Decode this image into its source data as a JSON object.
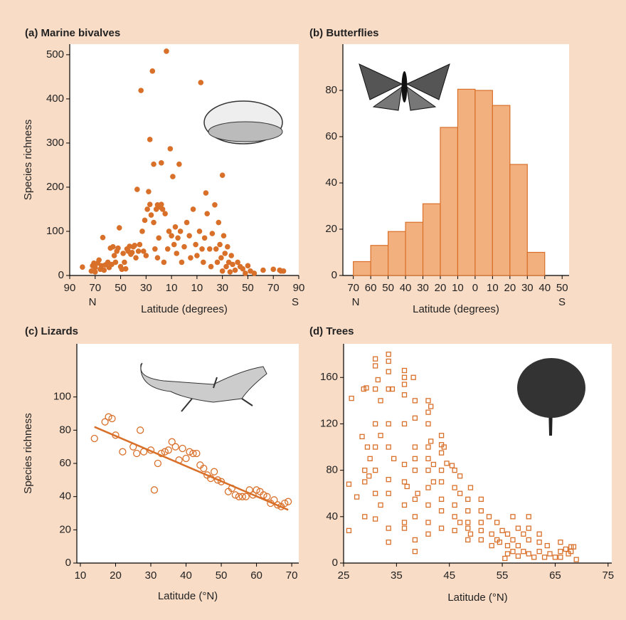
{
  "chart_data": [
    {
      "type": "scatter",
      "title": "(a) Marine bivalves",
      "xlabel": "Latitude (degrees)",
      "ylabel": "Species richness",
      "annotations": [
        "N",
        "S"
      ],
      "xlim": [
        90,
        -90
      ],
      "ylim": [
        0,
        524
      ],
      "xticks": [
        90,
        70,
        50,
        30,
        10,
        {
          "value": -10,
          "label": "10"
        },
        {
          "value": -30,
          "label": "30"
        },
        {
          "value": -50,
          "label": "50"
        },
        {
          "value": -70,
          "label": "70"
        },
        {
          "value": -90,
          "label": "90"
        }
      ],
      "yticks": [
        0,
        100,
        200,
        300,
        400,
        500
      ],
      "series": [
        {
          "color": "#d9702a",
          "marker": "circle",
          "filled": true,
          "x": [
            80,
            73,
            72,
            71,
            70,
            70,
            68,
            67,
            66,
            65,
            64,
            63,
            62,
            60,
            59,
            58,
            57,
            56,
            55,
            54,
            53,
            52,
            51,
            50,
            49,
            48,
            47,
            46,
            45,
            44,
            43,
            42,
            41,
            40,
            39,
            38,
            37,
            36,
            35,
            34,
            33,
            32,
            31,
            30,
            29,
            28,
            27,
            27,
            26,
            25,
            24,
            24,
            23,
            22,
            21,
            21,
            20,
            19,
            18,
            18,
            17,
            16,
            15,
            14,
            13,
            12,
            11,
            10,
            9,
            8,
            7,
            6,
            5,
            4,
            3,
            2,
            0,
            -2,
            -4,
            -5,
            -7,
            -9,
            -10,
            -12,
            -13,
            -14,
            -15,
            -16,
            -17,
            -18,
            -20,
            -21,
            -22,
            -24,
            -25,
            -26,
            -27,
            -28,
            -29,
            -30,
            -30,
            -31,
            -32,
            -33,
            -34,
            -35,
            -36,
            -37,
            -38,
            -40,
            -42,
            -44,
            -46,
            -48,
            -50,
            -52,
            -55,
            -62,
            -70,
            -75,
            -76,
            -78
          ],
          "values": [
            19,
            10,
            22,
            28,
            18,
            8,
            28,
            35,
            14,
            22,
            86,
            12,
            24,
            30,
            18,
            62,
            25,
            65,
            45,
            30,
            55,
            62,
            108,
            20,
            14,
            50,
            30,
            15,
            60,
            55,
            66,
            48,
            52,
            65,
            68,
            40,
            195,
            55,
            70,
            419,
            100,
            55,
            125,
            45,
            150,
            190,
            308,
            161,
            137,
            463,
            252,
            120,
            60,
            150,
            160,
            40,
            85,
            155,
            255,
            161,
            150,
            30,
            140,
            508,
            60,
            100,
            287,
            90,
            224,
            70,
            110,
            50,
            85,
            252,
            100,
            30,
            65,
            120,
            90,
            40,
            150,
            70,
            45,
            100,
            437,
            60,
            30,
            85,
            187,
            140,
            60,
            20,
            95,
            160,
            60,
            30,
            120,
            70,
            40,
            227,
            10,
            90,
            50,
            20,
            65,
            30,
            8,
            45,
            25,
            12,
            30,
            20,
            15,
            5,
            22,
            10,
            5,
            12,
            14,
            12,
            10,
            10
          ]
        }
      ]
    },
    {
      "type": "histogram",
      "title": "(b) Butterflies",
      "xlabel": "Latitude (degrees)",
      "annotations": [
        "N",
        "S"
      ],
      "xlim": [
        76,
        -54
      ],
      "ylim": [
        0,
        100
      ],
      "xticks": [
        70,
        60,
        50,
        40,
        30,
        20,
        10,
        0,
        {
          "value": -10,
          "label": "10"
        },
        {
          "value": -20,
          "label": "20"
        },
        {
          "value": -30,
          "label": "30"
        },
        {
          "value": -40,
          "label": "40"
        },
        {
          "value": -50,
          "label": "50"
        }
      ],
      "yticks": [
        0,
        20,
        40,
        60,
        80
      ],
      "color": "#f2b07f",
      "edgecolor": "#d9702a",
      "bins": [
        70,
        60,
        50,
        40,
        30,
        20,
        10,
        0,
        -10,
        -20,
        -30,
        -40
      ],
      "values": [
        6,
        13,
        19,
        23,
        31,
        64,
        80.5,
        80,
        73.5,
        48,
        10
      ]
    },
    {
      "type": "scatter",
      "title": "(c) Lizards",
      "xlabel": "Latitude (°N)",
      "ylabel": "Species richness",
      "xlim": [
        9,
        72
      ],
      "ylim": [
        0,
        132
      ],
      "xticks": [
        10,
        20,
        30,
        40,
        50,
        60,
        70
      ],
      "yticks": [
        0,
        20,
        40,
        60,
        80,
        100
      ],
      "series": [
        {
          "color": "#d9702a",
          "marker": "circle",
          "filled": false,
          "x": [
            14,
            17,
            18,
            19,
            20,
            22,
            25,
            26,
            27,
            28,
            30,
            31,
            32,
            33,
            34,
            35,
            36,
            37,
            38,
            39,
            40,
            41,
            42,
            43,
            44,
            45,
            46,
            47,
            48,
            49,
            50,
            52,
            53,
            54,
            55,
            56,
            57,
            58,
            59,
            60,
            61,
            62,
            63,
            64,
            65,
            66,
            67,
            68,
            69
          ],
          "values": [
            75,
            85,
            88,
            87,
            77,
            67,
            70,
            66,
            80,
            67,
            68,
            44,
            60,
            66,
            67,
            68,
            73,
            70,
            62,
            69,
            63,
            67,
            66,
            66,
            59,
            57,
            53,
            51,
            55,
            50,
            49,
            43,
            45,
            41,
            40,
            40,
            40,
            44,
            41,
            44,
            43,
            41,
            40,
            36,
            38,
            35,
            34,
            36,
            37
          ]
        },
        {
          "color": "#d9702a",
          "kind": "line",
          "x": [
            14,
            69
          ],
          "values": [
            82,
            32
          ]
        }
      ]
    },
    {
      "type": "scatter",
      "title": "(d) Trees",
      "xlabel": "Latitude (°N)",
      "xlim": [
        25,
        75.7
      ],
      "ylim": [
        0,
        189
      ],
      "xticks": [
        25,
        35,
        45,
        55,
        65,
        75
      ],
      "yticks": [
        0,
        40,
        80,
        120,
        160
      ],
      "series": [
        {
          "color": "#d9702a",
          "marker": "square",
          "filled": false,
          "x": [
            26,
            26,
            26.5,
            27.5,
            28.5,
            28.8,
            29,
            29,
            29,
            29.3,
            29.5,
            29.8,
            30,
            31,
            31,
            31,
            31,
            31,
            31,
            31,
            31,
            31.5,
            32,
            32,
            32,
            33.5,
            33.5,
            33.5,
            33.5,
            33.5,
            33.5,
            33.5,
            33.5,
            33.5,
            33.5,
            34.2,
            34.5,
            36.5,
            36.5,
            36.5,
            36.5,
            36.5,
            36.5,
            36.5,
            36.5,
            36.5,
            36.5,
            37,
            38.2,
            38.5,
            38.5,
            38.5,
            38.5,
            38.5,
            38.5,
            38.5,
            38.5,
            38.5,
            39,
            41,
            41,
            41,
            41,
            41,
            41,
            41,
            41,
            41,
            41,
            41.5,
            41.5,
            42,
            42,
            43.5,
            43.5,
            43.5,
            43.5,
            43.5,
            43.5,
            43.5,
            43.5,
            44,
            44.5,
            45.5,
            46,
            46,
            46,
            46,
            46,
            47,
            47,
            47,
            48.5,
            48.5,
            48.5,
            48.5,
            48.5,
            49,
            49,
            51,
            51,
            51,
            51,
            51,
            52.5,
            53,
            53,
            54,
            54,
            54.5,
            55,
            55.5,
            56,
            56,
            56,
            57,
            57,
            57,
            58,
            58,
            58,
            59,
            59,
            60,
            60,
            60,
            60,
            61,
            62,
            62,
            62,
            63,
            63.5,
            64,
            65,
            66,
            66,
            66,
            67,
            67.5,
            68,
            68,
            68.5,
            69
          ],
          "values": [
            28,
            68,
            142,
            57,
            109,
            150,
            80,
            70,
            40,
            151,
            100,
            75,
            90,
            150,
            176,
            170,
            120,
            100,
            80,
            60,
            38,
            158,
            140,
            110,
            50,
            180,
            174,
            165,
            150,
            120,
            100,
            72,
            60,
            30,
            18,
            150,
            90,
            166,
            160,
            154,
            145,
            120,
            85,
            70,
            50,
            35,
            30,
            66,
            160,
            140,
            125,
            100,
            90,
            80,
            55,
            40,
            20,
            10,
            60,
            140,
            130,
            120,
            100,
            90,
            80,
            65,
            50,
            35,
            25,
            135,
            105,
            85,
            70,
            110,
            102,
            95,
            80,
            70,
            55,
            45,
            30,
            100,
            86,
            84,
            80,
            65,
            50,
            40,
            28,
            75,
            60,
            35,
            55,
            45,
            35,
            30,
            20,
            65,
            25,
            55,
            45,
            35,
            28,
            20,
            40,
            25,
            15,
            35,
            20,
            18,
            28,
            4,
            25,
            15,
            8,
            40,
            20,
            10,
            30,
            15,
            6,
            25,
            10,
            40,
            30,
            20,
            8,
            5,
            25,
            18,
            10,
            5,
            15,
            8,
            5,
            18,
            10,
            5,
            12,
            8,
            14,
            10,
            14,
            3
          ]
        }
      ]
    }
  ]
}
